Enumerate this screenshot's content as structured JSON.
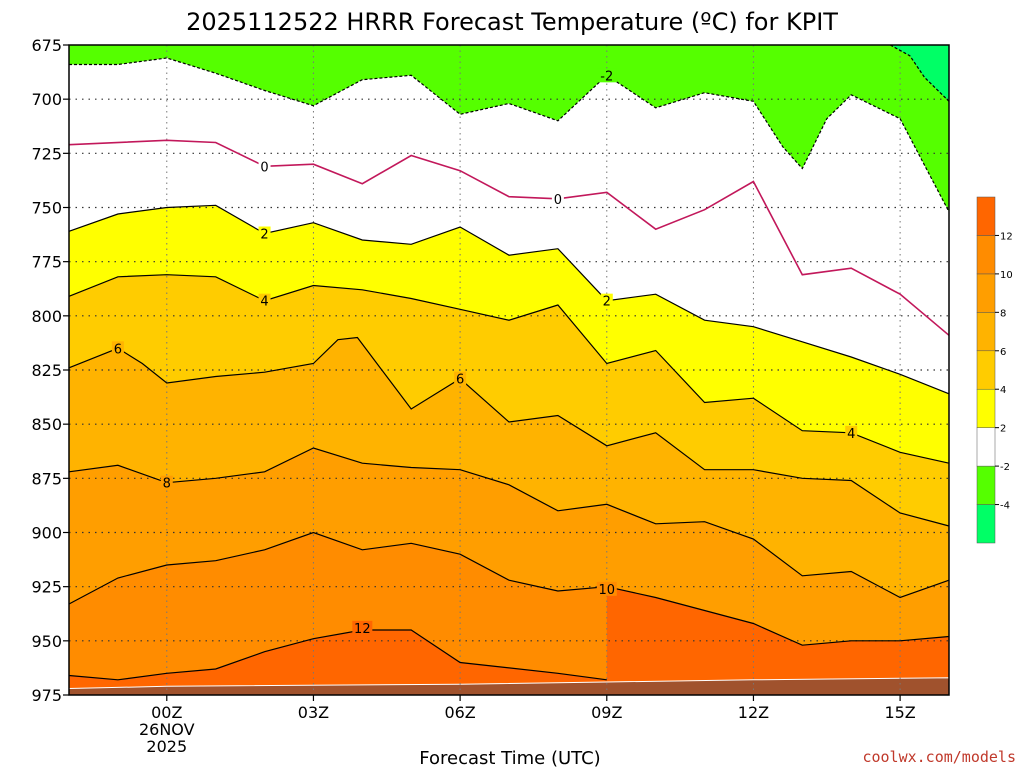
{
  "chart_data": {
    "type": "contour",
    "title": "2025112522 HRRR Forecast Temperature (ºC) for KPIT",
    "xlabel": "Forecast Time (UTC)",
    "ylabel": "",
    "credit": "coolwx.com/models",
    "x_unit": "forecast hours from 00Z 26 Nov 2025",
    "xlim": [
      -2,
      16
    ],
    "ylim": [
      975,
      675
    ],
    "y_axis": {
      "ticks": [
        675,
        700,
        725,
        750,
        775,
        800,
        825,
        850,
        875,
        900,
        925,
        950,
        975
      ]
    },
    "x_axis": {
      "ticks": [
        {
          "x": 0,
          "lines": [
            "00Z",
            "26NOV",
            "2025"
          ]
        },
        {
          "x": 3,
          "lines": [
            "03Z"
          ]
        },
        {
          "x": 6,
          "lines": [
            "06Z"
          ]
        },
        {
          "x": 9,
          "lines": [
            "09Z"
          ]
        },
        {
          "x": 12,
          "lines": [
            "12Z"
          ]
        },
        {
          "x": 15,
          "lines": [
            "15Z"
          ]
        }
      ]
    },
    "grid": true,
    "ground_color": "#a0522d",
    "ground": [
      [
        -2,
        972
      ],
      [
        0,
        971
      ],
      [
        6,
        970
      ],
      [
        9,
        969
      ],
      [
        12,
        968
      ],
      [
        16,
        967
      ]
    ],
    "fills": [
      {
        "min": 12,
        "max": 14,
        "color": "#ff6600"
      },
      {
        "min": 10,
        "max": 12,
        "color": "#ff8c00"
      },
      {
        "min": 8,
        "max": 10,
        "color": "#ff9e00"
      },
      {
        "min": 6,
        "max": 8,
        "color": "#ffb300"
      },
      {
        "min": 4,
        "max": 6,
        "color": "#ffcc00"
      },
      {
        "min": 2,
        "max": 4,
        "color": "#ffff00"
      },
      {
        "min": -2,
        "max": 2,
        "color": "#ffffff"
      },
      {
        "min": -4,
        "max": -2,
        "color": "#55ff00"
      },
      {
        "min": -6,
        "max": -4,
        "color": "#00ff66"
      }
    ],
    "colorbar": {
      "levels": [
        -6,
        -4,
        -2,
        2,
        4,
        6,
        8,
        10,
        12,
        14
      ],
      "labels": [
        "-4",
        "-2",
        "2",
        "4",
        "6",
        "8",
        "10",
        "12"
      ]
    },
    "contours": [
      {
        "level": 12,
        "label": "12",
        "label_at": [
          [
            4.0,
            944
          ]
        ],
        "points": [
          [
            -2,
            966
          ],
          [
            -1,
            968
          ],
          [
            0,
            965
          ],
          [
            1,
            963
          ],
          [
            2,
            955
          ],
          [
            3,
            949
          ],
          [
            4,
            945
          ],
          [
            5,
            945
          ],
          [
            6,
            960
          ],
          [
            8,
            965
          ],
          [
            9,
            968
          ]
        ]
      },
      {
        "level": 10,
        "label": "10",
        "label_at": [
          [
            9.0,
            926
          ]
        ],
        "points": [
          [
            -2,
            933
          ],
          [
            -1,
            921
          ],
          [
            0,
            915
          ],
          [
            1,
            913
          ],
          [
            2,
            908
          ],
          [
            3,
            900
          ],
          [
            4,
            908
          ],
          [
            5,
            905
          ],
          [
            6,
            910
          ],
          [
            7,
            922
          ],
          [
            8,
            927
          ],
          [
            9,
            925
          ],
          [
            10,
            930
          ],
          [
            11,
            936
          ],
          [
            12,
            942
          ],
          [
            13,
            952
          ],
          [
            14,
            950
          ],
          [
            15,
            950
          ],
          [
            16,
            948
          ]
        ]
      },
      {
        "level": 8,
        "label": "8",
        "label_at": [
          [
            0.0,
            877
          ]
        ],
        "points": [
          [
            -2,
            872
          ],
          [
            -1,
            869
          ],
          [
            0,
            877
          ],
          [
            1,
            875
          ],
          [
            2,
            872
          ],
          [
            3,
            861
          ],
          [
            4,
            868
          ],
          [
            5,
            870
          ],
          [
            6,
            871
          ],
          [
            7,
            878
          ],
          [
            8,
            890
          ],
          [
            9,
            887
          ],
          [
            10,
            896
          ],
          [
            11,
            895
          ],
          [
            12,
            903
          ],
          [
            13,
            920
          ],
          [
            14,
            918
          ],
          [
            15,
            930
          ],
          [
            16,
            922
          ]
        ]
      },
      {
        "level": 6,
        "label": "6",
        "label_at": [
          [
            -1.0,
            815
          ],
          [
            6.0,
            829
          ]
        ],
        "points": [
          [
            -2,
            824
          ],
          [
            -1,
            815
          ],
          [
            -0.5,
            822
          ],
          [
            0,
            831
          ],
          [
            1,
            828
          ],
          [
            2,
            826
          ],
          [
            3,
            822
          ],
          [
            3.5,
            811
          ],
          [
            3.9,
            810
          ],
          [
            5,
            843
          ],
          [
            6,
            829
          ],
          [
            7,
            849
          ],
          [
            8,
            846
          ],
          [
            9,
            860
          ],
          [
            10,
            854
          ],
          [
            11,
            871
          ],
          [
            12,
            871
          ],
          [
            13,
            875
          ],
          [
            14,
            876
          ],
          [
            15,
            891
          ],
          [
            16,
            897
          ]
        ]
      },
      {
        "level": 4,
        "label": "4",
        "label_at": [
          [
            2.0,
            793
          ],
          [
            14.0,
            854
          ]
        ],
        "points": [
          [
            -2,
            791
          ],
          [
            -1,
            782
          ],
          [
            0,
            781
          ],
          [
            1,
            782
          ],
          [
            2,
            793
          ],
          [
            3,
            786
          ],
          [
            4,
            788
          ],
          [
            5,
            792
          ],
          [
            6,
            797
          ],
          [
            7,
            802
          ],
          [
            8,
            795
          ],
          [
            9,
            822
          ],
          [
            10,
            816
          ],
          [
            11,
            840
          ],
          [
            12,
            838
          ],
          [
            13,
            853
          ],
          [
            14,
            854
          ],
          [
            15,
            863
          ],
          [
            16,
            868
          ]
        ]
      },
      {
        "level": 2,
        "label": "2",
        "label_at": [
          [
            2.0,
            762
          ],
          [
            9.0,
            793
          ]
        ],
        "points": [
          [
            -2,
            761
          ],
          [
            -1,
            753
          ],
          [
            0,
            750
          ],
          [
            1,
            749
          ],
          [
            2,
            762
          ],
          [
            3,
            757
          ],
          [
            4,
            765
          ],
          [
            5,
            767
          ],
          [
            6,
            759
          ],
          [
            7,
            772
          ],
          [
            8,
            769
          ],
          [
            9,
            793
          ],
          [
            10,
            790
          ],
          [
            11,
            802
          ],
          [
            12,
            805
          ],
          [
            13,
            812
          ],
          [
            14,
            819
          ],
          [
            15,
            827
          ],
          [
            16,
            836
          ]
        ]
      },
      {
        "level": 0,
        "label": "0",
        "label_at": [
          [
            2.0,
            731
          ],
          [
            8.0,
            746
          ]
        ],
        "points": [
          [
            -2,
            721
          ],
          [
            0,
            719
          ],
          [
            1,
            720
          ],
          [
            2,
            731
          ],
          [
            3,
            730
          ],
          [
            4,
            739
          ],
          [
            5,
            726
          ],
          [
            6,
            733
          ],
          [
            7,
            745
          ],
          [
            8,
            746
          ],
          [
            9,
            743
          ],
          [
            10,
            760
          ],
          [
            11,
            751
          ],
          [
            12,
            738
          ],
          [
            13,
            781
          ],
          [
            14,
            778
          ],
          [
            15,
            790
          ],
          [
            16,
            809
          ]
        ]
      },
      {
        "level": -2,
        "label": "-2",
        "label_at": [
          [
            9.0,
            689
          ]
        ],
        "points": [
          [
            -2,
            684
          ],
          [
            -1,
            684
          ],
          [
            0,
            681
          ],
          [
            1,
            688
          ],
          [
            2,
            696
          ],
          [
            3,
            703
          ],
          [
            4,
            691
          ],
          [
            5,
            689
          ],
          [
            6,
            707
          ],
          [
            7,
            702
          ],
          [
            8,
            710
          ],
          [
            9,
            689
          ],
          [
            10,
            704
          ],
          [
            11,
            697
          ],
          [
            12,
            701
          ],
          [
            12.6,
            722
          ],
          [
            13,
            732
          ],
          [
            13.5,
            709
          ],
          [
            14,
            698
          ],
          [
            15,
            709
          ],
          [
            16,
            752
          ]
        ]
      }
    ],
    "contour_m4": {
      "level": -4,
      "points": [
        [
          14.8,
          675
        ],
        [
          15.2,
          680
        ],
        [
          15.5,
          690
        ],
        [
          16,
          701
        ]
      ]
    }
  }
}
